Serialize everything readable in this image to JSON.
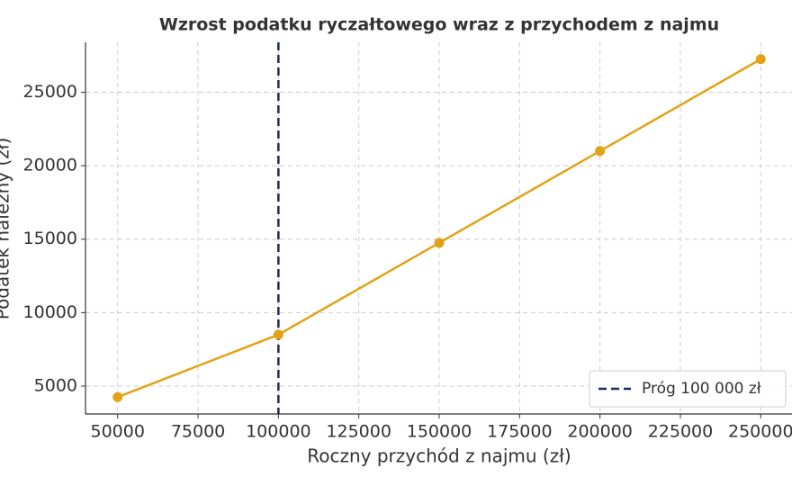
{
  "chart_data": {
    "type": "line",
    "title": "Wzrost podatku ryczałtowego wraz z przychodem z najmu",
    "xlabel": "Roczny przychód z najmu (zł)",
    "ylabel": "Podatek należny (zł)",
    "x": [
      50000,
      100000,
      150000,
      200000,
      250000
    ],
    "series": [
      {
        "color": "#e2a217",
        "values": [
          4250,
          8500,
          14750,
          21000,
          27250
        ]
      }
    ],
    "vline": {
      "x": 100000,
      "label": "Próg 100 000 zł",
      "color": "#1f2a5c"
    },
    "xlim": [
      40000,
      260000
    ],
    "xticks": [
      50000,
      75000,
      100000,
      125000,
      150000,
      175000,
      200000,
      225000,
      250000
    ],
    "ylim": [
      3100,
      28400
    ],
    "yticks": [
      5000,
      10000,
      15000,
      20000,
      25000
    ],
    "grid": true,
    "legend": "lower right"
  }
}
